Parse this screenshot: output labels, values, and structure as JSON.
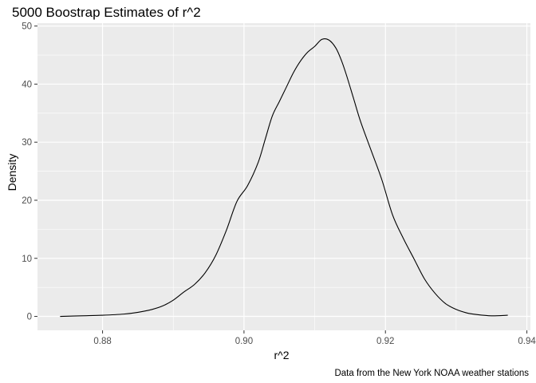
{
  "chart_data": {
    "type": "line",
    "title": "5000 Boostrap Estimates of r^2",
    "xlabel": "r^2",
    "ylabel": "Density",
    "caption": "Data from the New York NOAA weather stations",
    "xlim": [
      0.8708,
      0.9405
    ],
    "ylim": [
      -2.4,
      50.5
    ],
    "x_ticks": [
      0.88,
      0.9,
      0.92,
      0.94
    ],
    "x_tick_labels": [
      "0.88",
      "0.90",
      "0.92",
      "0.94"
    ],
    "y_ticks": [
      0,
      10,
      20,
      30,
      40,
      50
    ],
    "y_tick_labels": [
      "0",
      "10",
      "20",
      "30",
      "40",
      "50"
    ],
    "grid": true,
    "colors": {
      "panel": "#ebebeb",
      "grid": "#ffffff",
      "line": "#000000"
    },
    "series": [
      {
        "x": [
          0.874,
          0.877,
          0.88,
          0.883,
          0.885,
          0.887,
          0.8885,
          0.89,
          0.8915,
          0.893,
          0.8945,
          0.896,
          0.8975,
          0.899,
          0.9005,
          0.902,
          0.903,
          0.904,
          0.905,
          0.906,
          0.907,
          0.908,
          0.909,
          0.91,
          0.911,
          0.912,
          0.913,
          0.9138,
          0.9145,
          0.9155,
          0.9165,
          0.918,
          0.9195,
          0.921,
          0.9225,
          0.924,
          0.9255,
          0.927,
          0.9285,
          0.93,
          0.9315,
          0.933,
          0.935,
          0.9373
        ],
        "y": [
          0.0,
          0.1,
          0.2,
          0.4,
          0.7,
          1.2,
          1.8,
          2.8,
          4.2,
          5.5,
          7.5,
          10.5,
          14.8,
          19.8,
          22.5,
          26.5,
          30.5,
          34.5,
          37.0,
          39.5,
          42.0,
          44.0,
          45.5,
          46.5,
          47.7,
          47.6,
          46.2,
          44.0,
          41.5,
          37.5,
          33.5,
          28.5,
          23.5,
          17.5,
          13.5,
          10.0,
          6.5,
          4.0,
          2.2,
          1.2,
          0.6,
          0.3,
          0.1,
          0.2
        ]
      }
    ]
  }
}
